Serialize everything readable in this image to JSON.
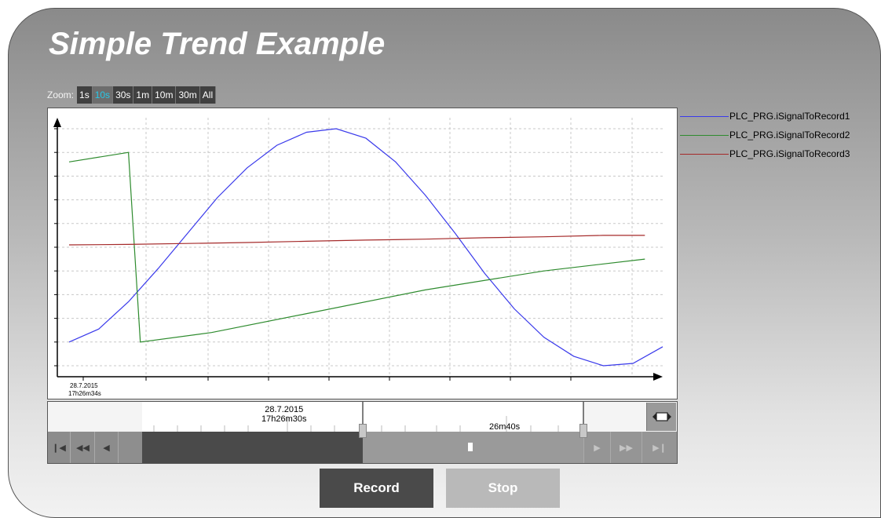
{
  "title": "Simple Trend Example",
  "zoom": {
    "label": "Zoom:",
    "options": [
      "1s",
      "10s",
      "30s",
      "1m",
      "10m",
      "30m",
      "All"
    ],
    "selected": "10s"
  },
  "legend": [
    {
      "name": "PLC_PRG.iSignalToRecord1",
      "color": "#3a3aeb"
    },
    {
      "name": "PLC_PRG.iSignalToRecord2",
      "color": "#2e8b2e"
    },
    {
      "name": "PLC_PRG.iSignalToRecord3",
      "color": "#a52a2a"
    }
  ],
  "chart_data": {
    "type": "line",
    "x_start_label_date": "28.7.2015",
    "x_start_label_time": "17h26m34s",
    "series": [
      {
        "name": "PLC_PRG.iSignalToRecord1",
        "color": "#3a3aeb",
        "x": [
          0,
          0.5,
          1,
          1.5,
          2,
          2.5,
          3,
          3.5,
          4,
          4.5,
          5,
          5.5,
          6,
          6.5,
          7,
          7.5,
          8,
          8.5,
          9,
          9.5,
          10
        ],
        "y": [
          10,
          15.5,
          27,
          41,
          56,
          71,
          83.5,
          93,
          98.5,
          100,
          96,
          86,
          72,
          56,
          39,
          24,
          12,
          4,
          0,
          1,
          8
        ]
      },
      {
        "name": "PLC_PRG.iSignalToRecord2",
        "color": "#2e8b2e",
        "x": [
          0,
          1,
          1.2,
          2.4,
          4,
          6,
          8,
          9.7
        ],
        "y": [
          86,
          90,
          10,
          14,
          22,
          32,
          40,
          45
        ]
      },
      {
        "name": "PLC_PRG.iSignalToRecord3",
        "color": "#a52a2a",
        "x": [
          0,
          1,
          2,
          3,
          4,
          5,
          6,
          7,
          8,
          9,
          9.7
        ],
        "y": [
          51,
          51.2,
          51.6,
          52,
          52.5,
          53,
          53.4,
          54,
          54.4,
          55,
          55
        ]
      }
    ],
    "ylim": [
      0,
      100
    ],
    "xlim": [
      0,
      10
    ],
    "grid": true
  },
  "timeline": {
    "date": "28.7.2015",
    "time": "17h26m30s",
    "secondary_label": "26m40s"
  },
  "buttons": {
    "record": "Record",
    "stop": "Stop"
  }
}
